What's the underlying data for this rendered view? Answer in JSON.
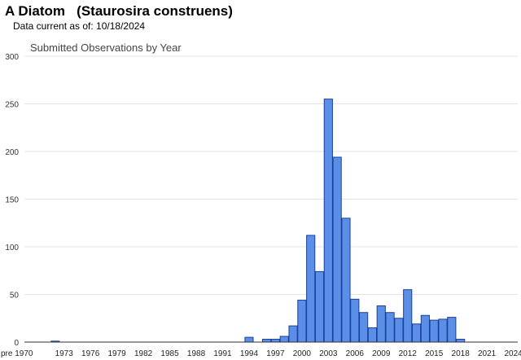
{
  "header": {
    "title": "A Diatom   (Staurosira construens)",
    "data_current": "Data current as of: 10/18/2024"
  },
  "colors": {
    "bar_fill": "#5b8ee6",
    "bar_stroke": "#1a3f9c",
    "grid": "#e3e3e3",
    "axis": "#333333"
  },
  "chart_data": {
    "type": "bar",
    "title": "Submitted Observations by Year",
    "xlabel": "",
    "ylabel": "",
    "ylim": [
      0,
      300
    ],
    "yticks": [
      0,
      50,
      100,
      150,
      200,
      250,
      300
    ],
    "grid": true,
    "legend": "none",
    "tick_labels": [
      "pre 1970",
      "1973",
      "1976",
      "1979",
      "1982",
      "1985",
      "1988",
      "1991",
      "1994",
      "1997",
      "2000",
      "2003",
      "2006",
      "2009",
      "2012",
      "2015",
      "2018",
      "2021",
      "2024"
    ],
    "categories": [
      "pre 1970",
      "1970",
      "1971",
      "1972",
      "1973",
      "1974",
      "1975",
      "1976",
      "1977",
      "1978",
      "1979",
      "1980",
      "1981",
      "1982",
      "1983",
      "1984",
      "1985",
      "1986",
      "1987",
      "1988",
      "1989",
      "1990",
      "1991",
      "1992",
      "1993",
      "1994",
      "1995",
      "1996",
      "1997",
      "1998",
      "1999",
      "2000",
      "2001",
      "2002",
      "2003",
      "2004",
      "2005",
      "2006",
      "2007",
      "2008",
      "2009",
      "2010",
      "2011",
      "2012",
      "2013",
      "2014",
      "2015",
      "2016",
      "2017",
      "2018",
      "2019",
      "2020",
      "2021",
      "2022",
      "2023",
      "2024"
    ],
    "values": [
      0,
      0,
      0,
      1,
      0,
      0,
      0,
      0,
      0,
      0,
      0,
      0,
      0,
      0,
      0,
      0,
      0,
      0,
      0,
      0,
      0,
      0,
      0,
      0,
      0,
      5,
      0,
      3,
      3,
      6,
      17,
      44,
      112,
      74,
      255,
      194,
      130,
      45,
      31,
      15,
      38,
      31,
      25,
      55,
      19,
      28,
      23,
      24,
      26,
      3,
      0,
      0,
      0,
      0,
      0,
      0
    ]
  }
}
